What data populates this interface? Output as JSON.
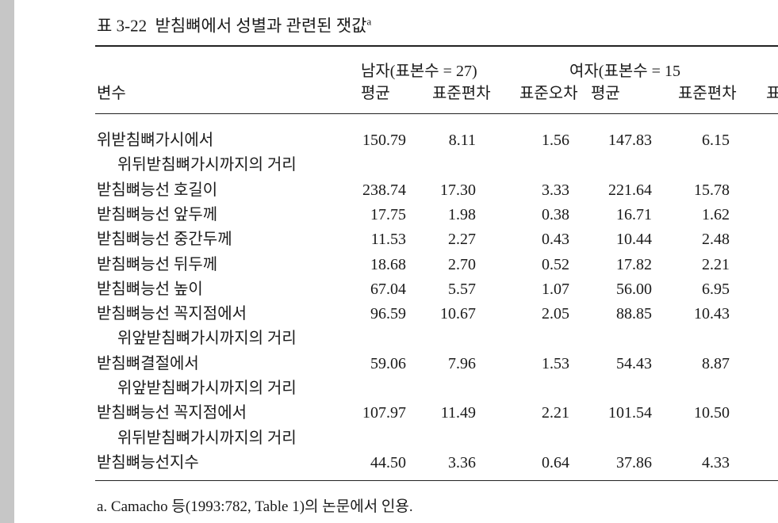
{
  "title": {
    "text": "표 3-22  받침뼈에서 성별과 관련된 잿값",
    "note_mark": "a"
  },
  "table": {
    "group_headers": [
      "남자(표본수 = 27)",
      "여자(표본수 = 15"
    ],
    "variable_header": "변수",
    "column_headers": [
      "평균",
      "표준편차",
      "표준오차",
      "평균",
      "표준편차",
      "표"
    ],
    "rows": [
      {
        "variable": [
          "위받침뼈가시에서",
          "위뒤받침뼈가시까지의 거리"
        ],
        "values": [
          "150.79",
          "8.11",
          "1.56",
          "147.83",
          "6.15"
        ]
      },
      {
        "variable": [
          "받침뼈능선 호길이"
        ],
        "values": [
          "238.74",
          "17.30",
          "3.33",
          "221.64",
          "15.78"
        ]
      },
      {
        "variable": [
          "받침뼈능선 앞두께"
        ],
        "values": [
          "17.75",
          "1.98",
          "0.38",
          "16.71",
          "1.62"
        ]
      },
      {
        "variable": [
          "받침뼈능선 중간두께"
        ],
        "values": [
          "11.53",
          "2.27",
          "0.43",
          "10.44",
          "2.48"
        ]
      },
      {
        "variable": [
          "받침뼈능선 뒤두께"
        ],
        "values": [
          "18.68",
          "2.70",
          "0.52",
          "17.82",
          "2.21"
        ]
      },
      {
        "variable": [
          "받침뼈능선 높이"
        ],
        "values": [
          "67.04",
          "5.57",
          "1.07",
          "56.00",
          "6.95"
        ]
      },
      {
        "variable": [
          "받침뼈능선 꼭지점에서",
          "위앞받침뼈가시까지의 거리"
        ],
        "values": [
          "96.59",
          "10.67",
          "2.05",
          "88.85",
          "10.43"
        ]
      },
      {
        "variable": [
          "받침뼈결절에서",
          "위앞받침뼈가시까지의 거리"
        ],
        "values": [
          "59.06",
          "7.96",
          "1.53",
          "54.43",
          "8.87"
        ]
      },
      {
        "variable": [
          "받침뼈능선 꼭지점에서",
          "위뒤받침뼈가시까지의 거리"
        ],
        "values": [
          "107.97",
          "11.49",
          "2.21",
          "101.54",
          "10.50"
        ]
      },
      {
        "variable": [
          "받침뼈능선지수"
        ],
        "values": [
          "44.50",
          "3.36",
          "0.64",
          "37.86",
          "4.33"
        ]
      }
    ]
  },
  "footnote": "a. Camacho 등(1993:782, Table 1)의 논문에서 인용."
}
